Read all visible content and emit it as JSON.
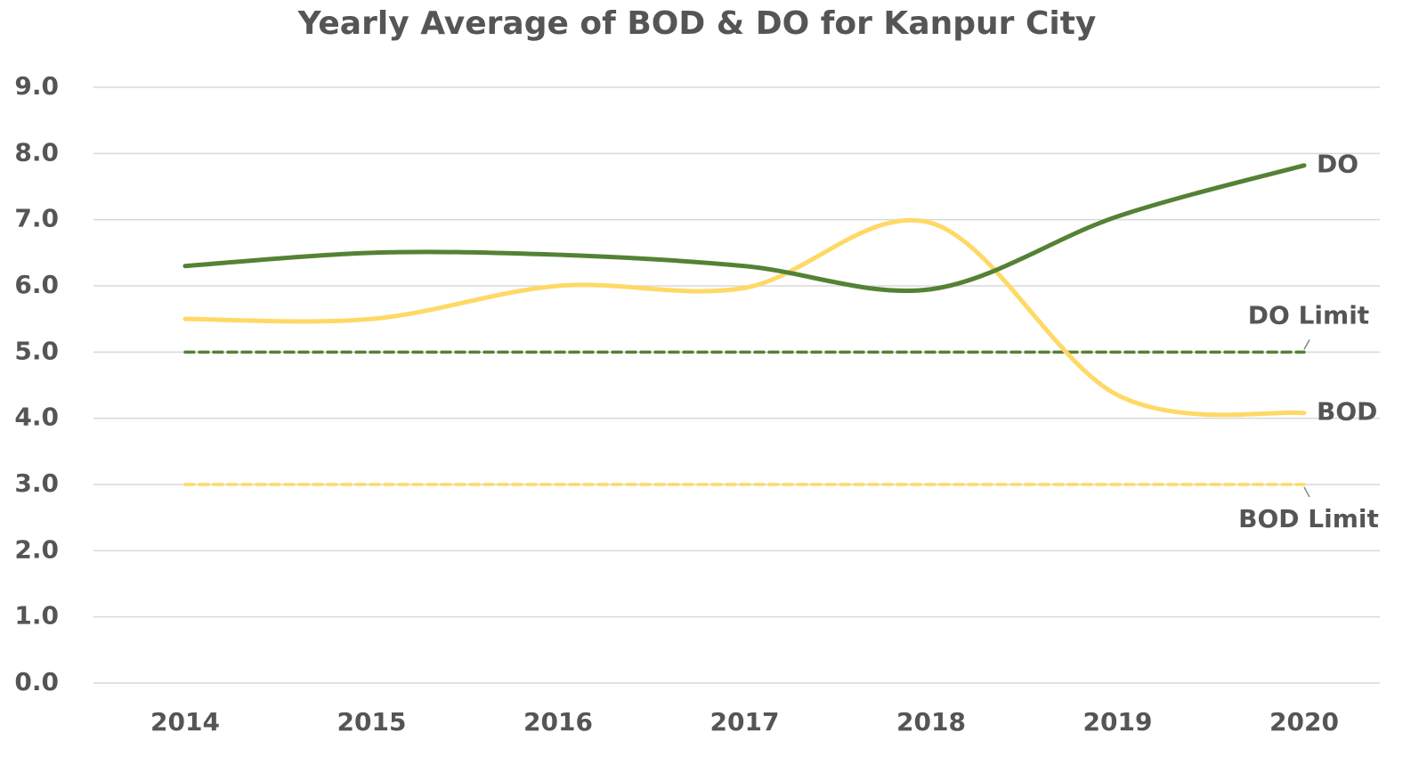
{
  "chart_data": {
    "type": "line",
    "title": "Yearly Average of BOD & DO for Kanpur City",
    "categories": [
      "2014",
      "2015",
      "2016",
      "2017",
      "2018",
      "2019",
      "2020"
    ],
    "series": [
      {
        "name": "DO",
        "color": "#548235",
        "dashed": false,
        "values": [
          6.3,
          6.5,
          6.47,
          6.3,
          5.95,
          7.05,
          7.82
        ]
      },
      {
        "name": "BOD",
        "color": "#ffd966",
        "dashed": false,
        "values": [
          5.5,
          5.5,
          6.0,
          5.97,
          6.95,
          4.35,
          4.08
        ]
      },
      {
        "name": "DO Limit",
        "color": "#548235",
        "dashed": true,
        "values": [
          5,
          5,
          5,
          5,
          5,
          5,
          5
        ]
      },
      {
        "name": "BOD Limit",
        "color": "#ffd966",
        "dashed": true,
        "values": [
          3,
          3,
          3,
          3,
          3,
          3,
          3
        ]
      }
    ],
    "ylim": [
      0,
      9
    ],
    "yticks": [
      {
        "value": 0,
        "label": "0.0"
      },
      {
        "value": 1,
        "label": "1.0"
      },
      {
        "value": 2,
        "label": "2.0"
      },
      {
        "value": 3,
        "label": "3.0"
      },
      {
        "value": 4,
        "label": "4.0"
      },
      {
        "value": 5,
        "label": "5.0"
      },
      {
        "value": 6,
        "label": "6.0"
      },
      {
        "value": 7,
        "label": "7.0"
      },
      {
        "value": 8,
        "label": "8.0"
      },
      {
        "value": 9,
        "label": "9.0"
      }
    ],
    "grid": true
  }
}
